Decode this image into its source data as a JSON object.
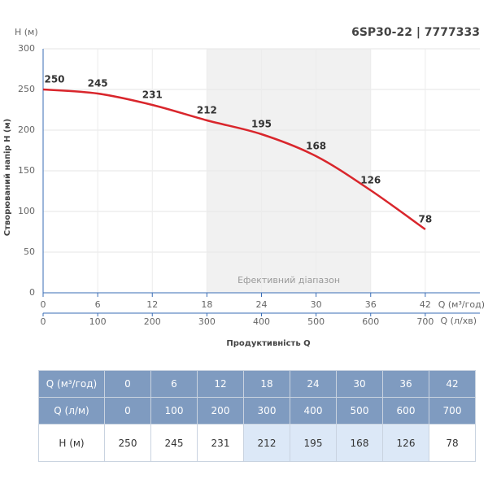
{
  "chart_data": {
    "type": "line",
    "title": "6SP30-22 | 7777333",
    "ylabel": "Створюваний напір H (м)",
    "yunit": "H (м)",
    "xlabel": "Продуктивність Q",
    "xunit": "Q (м³/год)",
    "x2unit": "Q (л/хв)",
    "x": [
      0,
      6,
      12,
      18,
      24,
      30,
      36,
      42
    ],
    "series": [
      {
        "name": "H",
        "color": "#d9262c",
        "values": [
          250,
          245,
          231,
          212,
          195,
          168,
          126,
          78
        ]
      }
    ],
    "xlim": [
      0,
      48
    ],
    "xticks": [
      0,
      6,
      12,
      18,
      24,
      30,
      36,
      42
    ],
    "x2lim": [
      0,
      800
    ],
    "x2ticks": [
      0,
      100,
      200,
      300,
      400,
      500,
      600,
      700
    ],
    "ylim": [
      0,
      300
    ],
    "yticks": [
      0,
      50,
      100,
      150,
      200,
      250,
      300
    ],
    "grid": true,
    "shaded_range": [
      18,
      36
    ],
    "shaded_label": "Ефективний діапазон"
  },
  "table": {
    "rows": [
      [
        "Q (м³/год)",
        0,
        6,
        12,
        18,
        24,
        30,
        36,
        42
      ],
      [
        "Q (л/м)",
        0,
        100,
        200,
        300,
        400,
        500,
        600,
        700
      ],
      [
        "H (м)",
        250,
        245,
        231,
        212,
        195,
        168,
        126,
        78
      ]
    ]
  }
}
